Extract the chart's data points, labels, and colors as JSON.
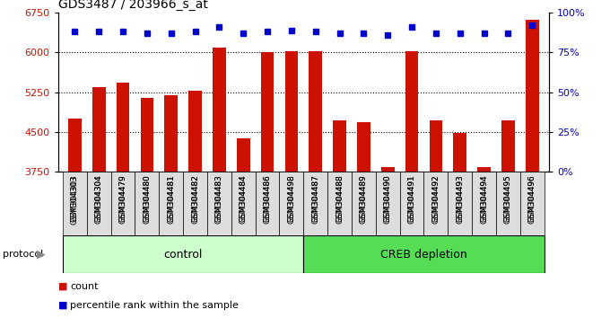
{
  "title": "GDS3487 / 203966_s_at",
  "samples": [
    "GSM304303",
    "GSM304304",
    "GSM304479",
    "GSM304480",
    "GSM304481",
    "GSM304482",
    "GSM304483",
    "GSM304484",
    "GSM304486",
    "GSM304498",
    "GSM304487",
    "GSM304488",
    "GSM304489",
    "GSM304490",
    "GSM304491",
    "GSM304492",
    "GSM304493",
    "GSM304494",
    "GSM304495",
    "GSM304496"
  ],
  "counts": [
    4750,
    5350,
    5430,
    5150,
    5200,
    5280,
    6090,
    4380,
    6010,
    6030,
    6030,
    4720,
    4680,
    3840,
    6030,
    4720,
    4490,
    3840,
    4720,
    6620
  ],
  "percentiles": [
    88,
    88,
    88,
    87,
    87,
    88,
    91,
    87,
    88,
    89,
    88,
    87,
    87,
    86,
    91,
    87,
    87,
    87,
    87,
    92
  ],
  "control_count": 10,
  "creb_count": 10,
  "ylim_left": [
    3750,
    6750
  ],
  "ylim_right": [
    0,
    100
  ],
  "yticks_left": [
    3750,
    4500,
    5250,
    6000,
    6750
  ],
  "yticks_right": [
    0,
    25,
    50,
    75,
    100
  ],
  "bar_color": "#cc1100",
  "dot_color": "#0000cc",
  "control_color": "#ccffcc",
  "creb_color": "#55dd55",
  "legend_count_label": "count",
  "legend_percentile_label": "percentile rank within the sample",
  "protocol_label": "protocol",
  "control_label": "control",
  "creb_label": "CREB depletion"
}
